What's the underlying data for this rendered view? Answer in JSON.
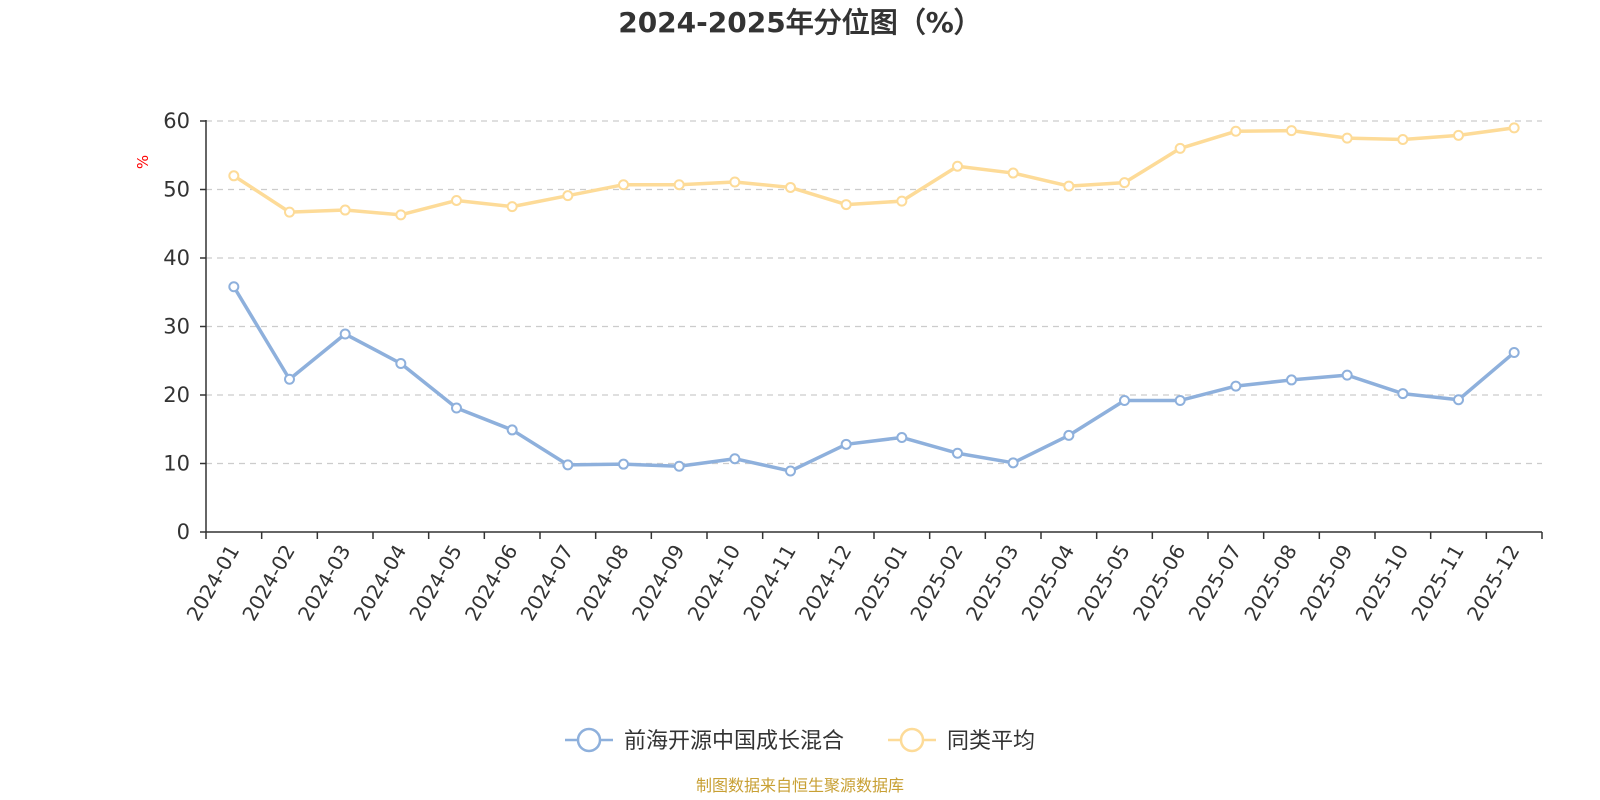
{
  "chart_data": {
    "type": "line",
    "title": "2024-2025年分位图（%）",
    "ylabel": "%",
    "ylim": [
      0,
      60
    ],
    "yticks": [
      0,
      10,
      20,
      30,
      40,
      50,
      60
    ],
    "grid": true,
    "legend_position": "bottom-center",
    "categories": [
      "2024-01",
      "2024-02",
      "2024-03",
      "2024-04",
      "2024-05",
      "2024-06",
      "2024-07",
      "2024-08",
      "2024-09",
      "2024-10",
      "2024-11",
      "2024-12",
      "2025-01",
      "2025-02",
      "2025-03",
      "2025-04",
      "2025-05",
      "2025-06",
      "2025-07",
      "2025-08",
      "2025-09",
      "2025-10",
      "2025-11",
      "2025-12"
    ],
    "series": [
      {
        "name": "前海开源中国成长混合",
        "color": "#8eb0dc",
        "values": [
          35.8,
          22.3,
          28.9,
          24.6,
          18.1,
          14.9,
          9.8,
          9.9,
          9.6,
          10.7,
          8.9,
          12.8,
          13.8,
          11.5,
          10.1,
          14.1,
          19.2,
          19.2,
          21.3,
          22.2,
          22.9,
          20.2,
          19.3,
          26.2
        ]
      },
      {
        "name": "同类平均",
        "color": "#fddb98",
        "values": [
          52.0,
          46.7,
          47.0,
          46.3,
          48.4,
          47.5,
          49.1,
          50.7,
          50.7,
          51.1,
          50.3,
          47.8,
          48.3,
          53.4,
          52.4,
          50.5,
          51.0,
          56.0,
          58.5,
          58.6,
          57.5,
          57.3,
          57.9,
          59.0
        ]
      }
    ]
  },
  "source_note": "制图数据来自恒生聚源数据库",
  "colors": {
    "axis": "#333333",
    "grid": "#cccccc",
    "unit": "#ff0000",
    "source": "#c8a034"
  }
}
